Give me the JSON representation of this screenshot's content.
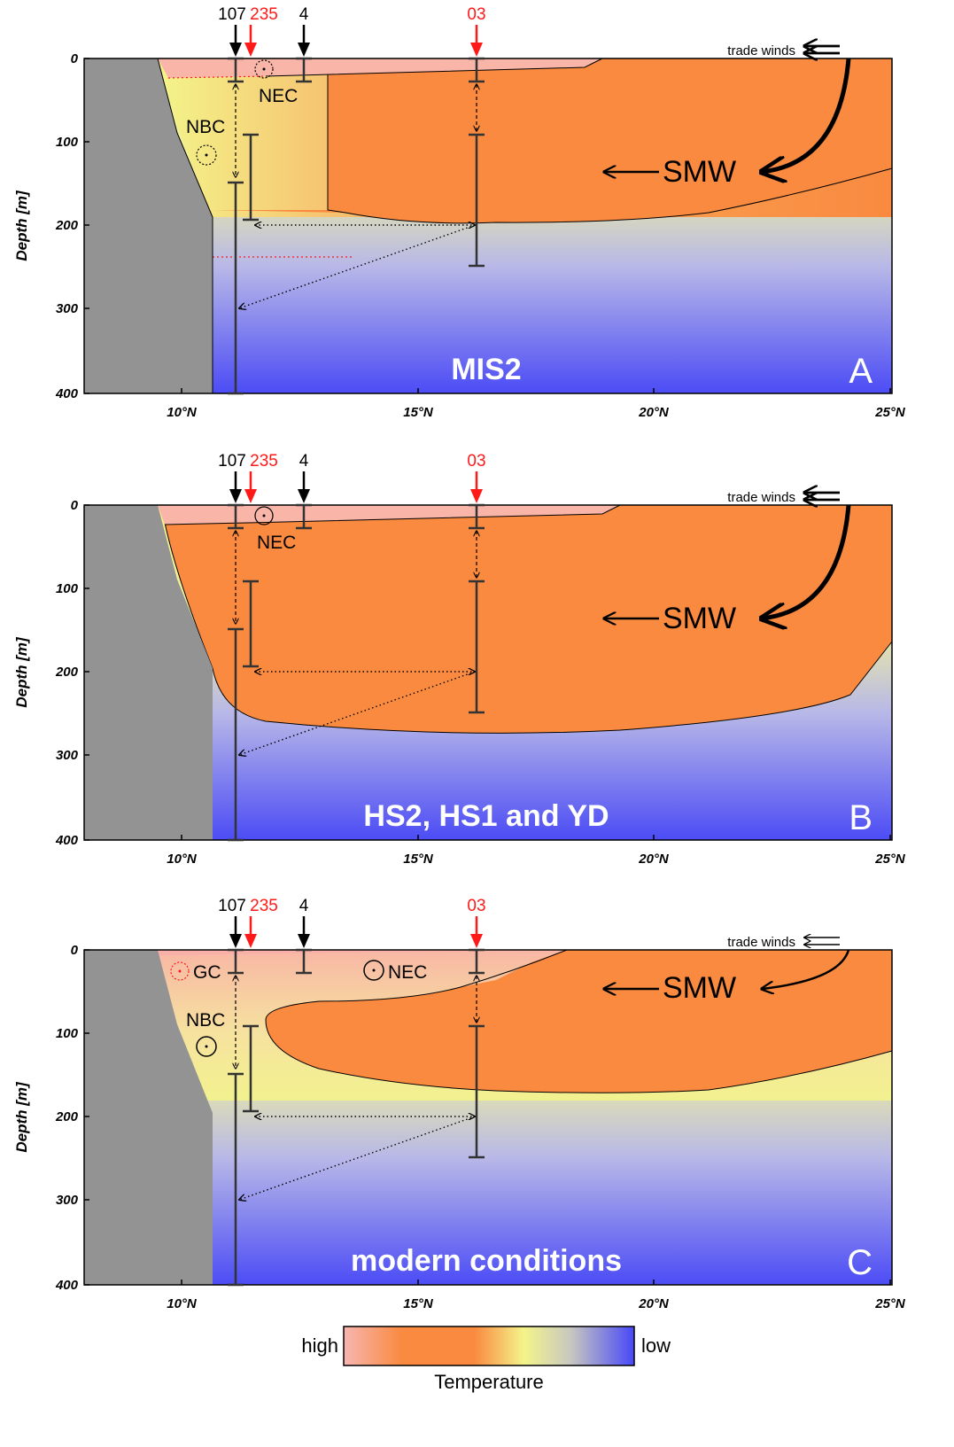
{
  "y_axis_label": "Depth [m]",
  "y_ticks": [
    "0",
    "100",
    "200",
    "300",
    "400"
  ],
  "x_ticks": [
    "10°N",
    "15°N",
    "20°N",
    "25°N"
  ],
  "trade_winds_label": "trade winds",
  "smw_label": "SMW",
  "nec_label": "NEC",
  "nbc_label": "NBC",
  "gc_label": "GC",
  "cores": {
    "c107": "107",
    "c235": "235",
    "c4": "4",
    "c03": "03"
  },
  "panels": [
    {
      "title": "MIS2",
      "letter": "A"
    },
    {
      "title": "HS2, HS1 and YD",
      "letter": "B"
    },
    {
      "title": "modern conditions",
      "letter": "C"
    }
  ],
  "legend": {
    "high": "high",
    "low": "low",
    "title": "Temperature"
  },
  "colors": {
    "warm_pink": "#f8b5a8",
    "orange": "#f98a40",
    "yellow": "#f4f48a",
    "cold_blue": "#5a5cf4",
    "land": "#939393",
    "core_red": "#ff1a1a"
  }
}
